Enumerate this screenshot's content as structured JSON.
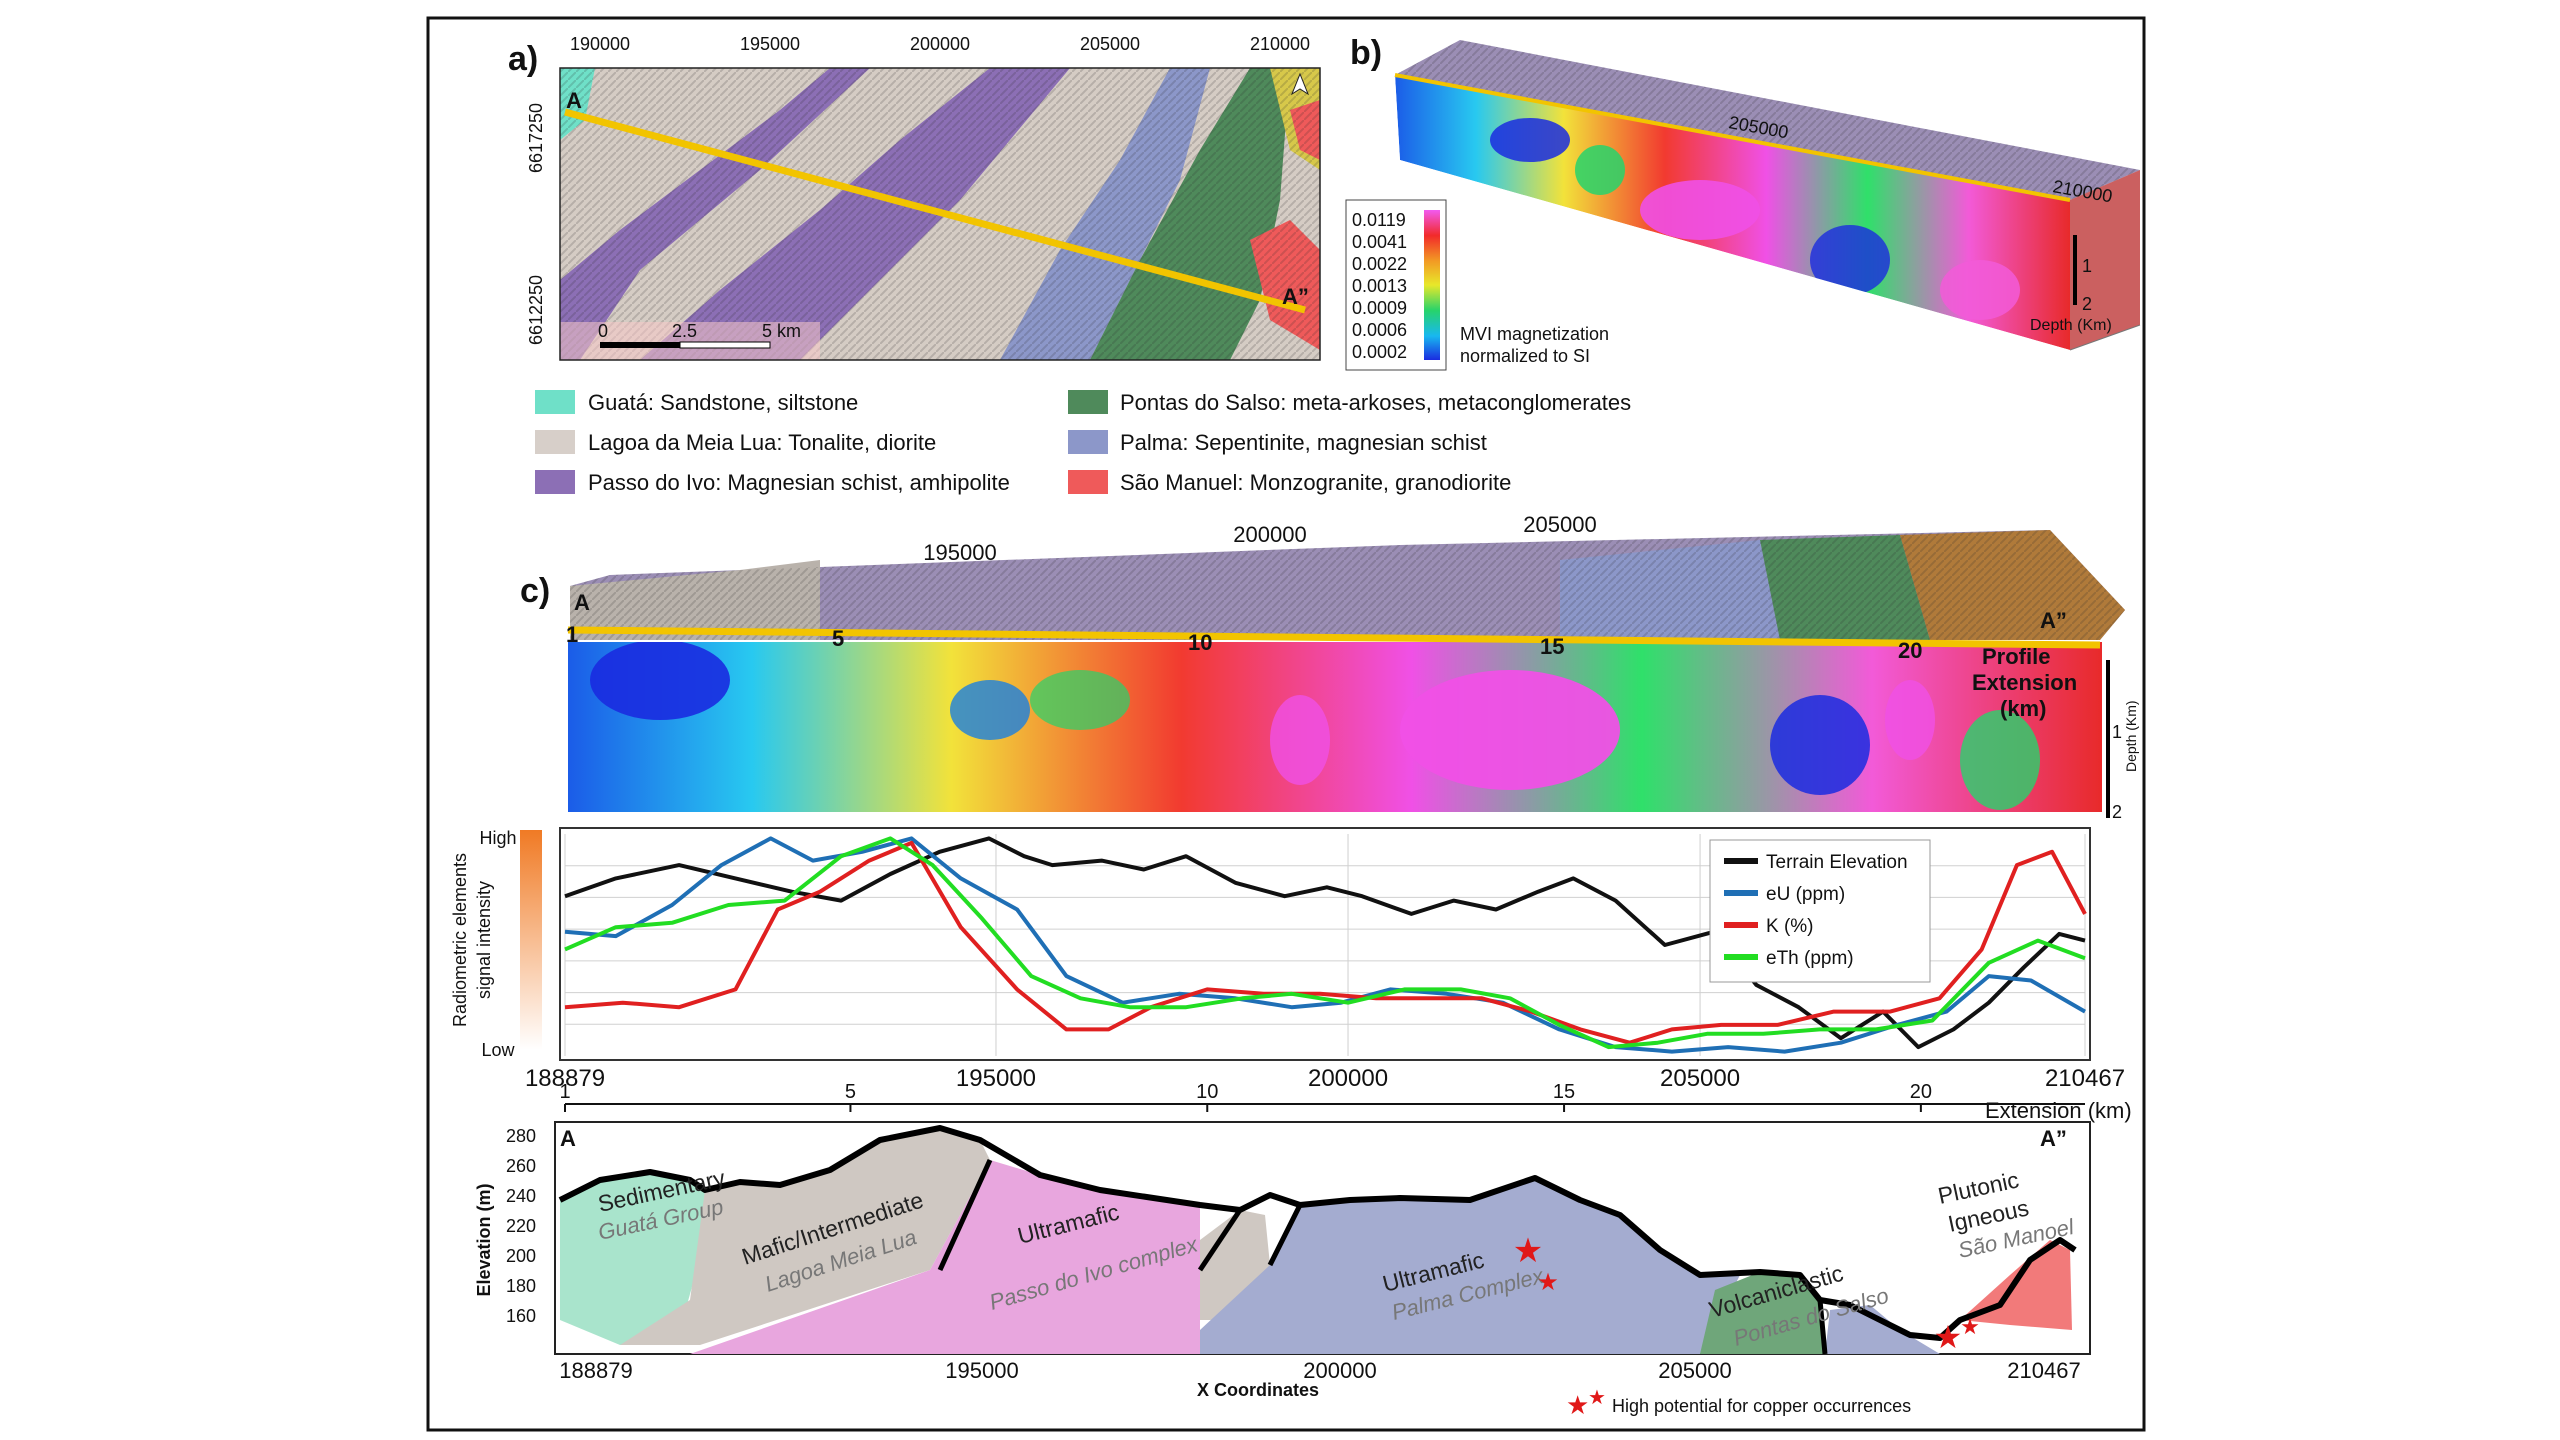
{
  "panels": {
    "a_letter": "a)",
    "b_letter": "b)",
    "c_letter": "c)"
  },
  "map_a": {
    "x_ticks": [
      "190000",
      "195000",
      "200000",
      "205000",
      "210000"
    ],
    "y_ticks": [
      "6617250",
      "6612250"
    ],
    "point_start": "A",
    "point_end": "A”",
    "scale_labels": [
      "0",
      "2.5",
      "5 km"
    ]
  },
  "legend_units": [
    {
      "name": "Guatá",
      "desc": "Guatá: Sandstone, siltstone",
      "color": "#6fe0c8"
    },
    {
      "name": "Lagoa da Meia Lua",
      "desc": "Lagoa da Meia Lua: Tonalite, diorite",
      "color": "#d7cfc9"
    },
    {
      "name": "Passo do Ivo",
      "desc": "Passo do Ivo: Magnesian schist, amhipolite",
      "color": "#8c6fb5"
    },
    {
      "name": "Pontas do Salso",
      "desc": "Pontas do Salso: meta-arkoses, metaconglomerates",
      "color": "#4f8a5b"
    },
    {
      "name": "Palma",
      "desc": "Palma: Sepentinite, magnesian schist",
      "color": "#8c97c9"
    },
    {
      "name": "São Manuel",
      "desc": "São Manuel: Monzogranite, granodiorite",
      "color": "#ef5a5a"
    }
  ],
  "block_b": {
    "colorbar_values": [
      "0.0119",
      "0.0041",
      "0.0022",
      "0.0013",
      "0.0009",
      "0.0006",
      "0.0002"
    ],
    "colorbar_title_1": "MVI magnetization",
    "colorbar_title_2": "normalized to SI",
    "depth_ticks": [
      "1",
      "2"
    ],
    "depth_label": "Depth (Km)",
    "top_ticks": [
      "205000",
      "210000"
    ]
  },
  "block_c": {
    "x_coord_ticks": [
      "195000",
      "200000",
      "205000"
    ],
    "point_start": "A",
    "point_end": "A”",
    "km_ticks": [
      "1",
      "5",
      "10",
      "15",
      "20"
    ],
    "profile_label_1": "Profile",
    "profile_label_2": "Extension",
    "profile_label_3": "(km)",
    "depth_ticks": [
      "1",
      "2"
    ],
    "depth_label": "Depth (Km)"
  },
  "chart_data": {
    "type": "line",
    "title": "",
    "xlabel": "",
    "ylabel": "Radiometric elements signal intensity",
    "ylabel_line1": "Radiometric elements",
    "ylabel_line2": "signal intensity",
    "y_high": "High",
    "y_low": "Low",
    "xlim": [
      188879,
      210467
    ],
    "ylim": [
      0,
      1
    ],
    "x_tick_labels": [
      "188879",
      "195000",
      "200000",
      "205000",
      "210467"
    ],
    "x_tick_values": [
      188879,
      195000,
      200000,
      205000,
      210467
    ],
    "km_axis_label": "Extension (km)",
    "km_ticks": [
      "1",
      "5",
      "10",
      "15",
      "20"
    ],
    "km_tick_values": [
      1,
      5,
      10,
      15,
      20
    ],
    "km_range": [
      1,
      22.3
    ],
    "legend_placement": "top-right",
    "series": [
      {
        "name": "Terrain Elevation",
        "color": "#111111",
        "x": [
          188879,
          189600,
          190500,
          191300,
          192100,
          192800,
          193500,
          194200,
          194900,
          195400,
          195800,
          196500,
          197100,
          197700,
          198400,
          199100,
          199700,
          200200,
          200900,
          201500,
          202100,
          202700,
          203200,
          203800,
          204500,
          205200,
          205800,
          206400,
          207000,
          207600,
          208100,
          208600,
          209100,
          209600,
          210100,
          210467
        ],
        "y": [
          0.72,
          0.8,
          0.86,
          0.8,
          0.74,
          0.7,
          0.82,
          0.92,
          0.98,
          0.9,
          0.86,
          0.88,
          0.84,
          0.9,
          0.78,
          0.72,
          0.76,
          0.72,
          0.64,
          0.7,
          0.66,
          0.74,
          0.8,
          0.7,
          0.5,
          0.56,
          0.32,
          0.22,
          0.08,
          0.2,
          0.04,
          0.12,
          0.24,
          0.4,
          0.55,
          0.52
        ]
      },
      {
        "name": "eU (ppm)",
        "color": "#1f6fb5",
        "x": [
          188879,
          189600,
          190400,
          191100,
          191800,
          192400,
          193100,
          193800,
          194500,
          195300,
          196000,
          196800,
          197600,
          198400,
          199200,
          199900,
          200600,
          201400,
          202200,
          203000,
          203800,
          204600,
          205400,
          206200,
          207000,
          207800,
          208500,
          209100,
          209700,
          210467
        ],
        "y": [
          0.56,
          0.54,
          0.68,
          0.86,
          0.98,
          0.88,
          0.92,
          0.98,
          0.8,
          0.66,
          0.36,
          0.24,
          0.28,
          0.26,
          0.22,
          0.24,
          0.3,
          0.28,
          0.24,
          0.12,
          0.04,
          0.02,
          0.04,
          0.02,
          0.06,
          0.14,
          0.2,
          0.36,
          0.34,
          0.2
        ]
      },
      {
        "name": "K (%)",
        "color": "#e02020",
        "x": [
          188879,
          189700,
          190500,
          191300,
          191900,
          192500,
          193200,
          193800,
          194500,
          195300,
          196000,
          196600,
          197200,
          198000,
          198800,
          199600,
          200400,
          201200,
          201900,
          202600,
          203300,
          204000,
          204600,
          205300,
          206100,
          206900,
          207700,
          208400,
          209000,
          209500,
          210000,
          210467
        ],
        "y": [
          0.22,
          0.24,
          0.22,
          0.3,
          0.66,
          0.74,
          0.88,
          0.96,
          0.58,
          0.3,
          0.12,
          0.12,
          0.22,
          0.3,
          0.28,
          0.28,
          0.26,
          0.26,
          0.26,
          0.2,
          0.12,
          0.06,
          0.12,
          0.14,
          0.14,
          0.2,
          0.2,
          0.26,
          0.48,
          0.86,
          0.92,
          0.64
        ]
      },
      {
        "name": "eTh (ppm)",
        "color": "#22dd22",
        "x": [
          188879,
          189600,
          190400,
          191200,
          192000,
          192800,
          193500,
          194100,
          194800,
          195500,
          196200,
          196900,
          197700,
          198500,
          199200,
          200000,
          200800,
          201600,
          202300,
          203000,
          203700,
          204400,
          205100,
          205900,
          206700,
          207500,
          208300,
          209100,
          209800,
          210467
        ],
        "y": [
          0.48,
          0.58,
          0.6,
          0.68,
          0.7,
          0.9,
          0.98,
          0.86,
          0.62,
          0.36,
          0.26,
          0.22,
          0.22,
          0.26,
          0.28,
          0.24,
          0.3,
          0.3,
          0.26,
          0.14,
          0.04,
          0.06,
          0.1,
          0.1,
          0.12,
          0.12,
          0.16,
          0.42,
          0.52,
          0.44
        ]
      }
    ]
  },
  "section_d": {
    "ylabel": "Elevation (m)",
    "xlabel": "X Coordinates",
    "y_ticks": [
      "280",
      "260",
      "240",
      "220",
      "200",
      "180",
      "160"
    ],
    "x_ticks": [
      "188879",
      "195000",
      "200000",
      "205000",
      "210467"
    ],
    "point_start": "A",
    "point_end": "A”",
    "units": [
      {
        "type": "Sedimentary",
        "name": "Guatá Group"
      },
      {
        "type": "Mafic/Intermediate",
        "name": "Lagoa Meia Lua"
      },
      {
        "type": "Ultramafic",
        "name": "Passo do Ivo complex"
      },
      {
        "type": "Ultramafic",
        "name": "Palma Complex"
      },
      {
        "type": "Volcaniclastic",
        "name": "Pontas do Salso"
      },
      {
        "type_line1": "Plutonic",
        "type_line2": "Igneous",
        "name": "São Manoel"
      }
    ],
    "copper_legend": "High potential for copper occurrences"
  },
  "colors": {
    "profile_line": "#f2c400",
    "frame": "#111111"
  }
}
